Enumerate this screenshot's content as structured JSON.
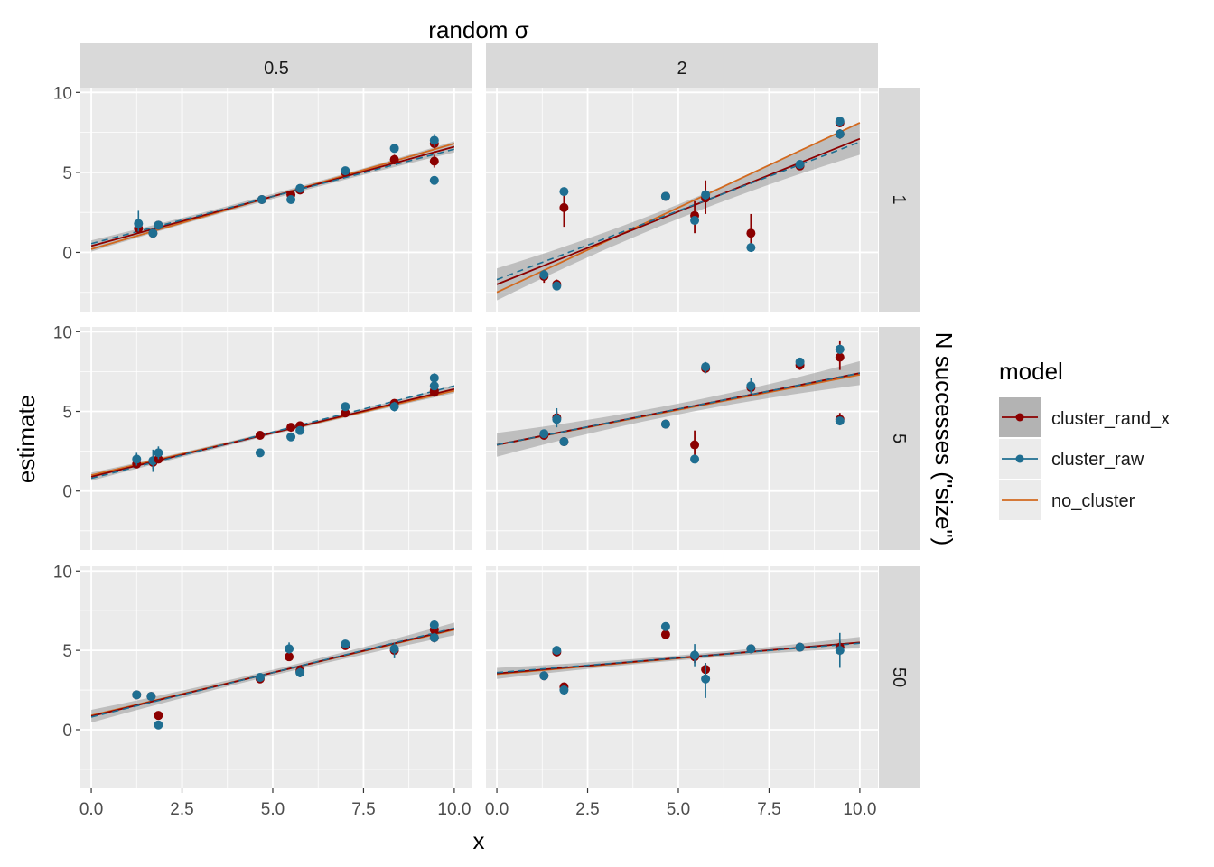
{
  "chart_data": {
    "type": "scatter",
    "title": "",
    "xlabel": "x",
    "ylabel": "estimate",
    "col_strip_title": "random σ",
    "row_strip_title": "N successes (\"size\")",
    "xlim": [
      -0.3,
      10.5
    ],
    "ylim": [
      -3.7,
      10.3
    ],
    "x_ticks": [
      0,
      2.5,
      5,
      7.5,
      10
    ],
    "x_tick_labels": [
      "0.0",
      "2.5",
      "5.0",
      "7.5",
      "10.0"
    ],
    "y_ticks": [
      0,
      5,
      10
    ],
    "y_tick_labels": [
      "0",
      "5",
      "10"
    ],
    "grid": true,
    "legend": {
      "title": "model",
      "placement": "right",
      "entries": [
        {
          "name": "cluster_rand_x",
          "color": "#8B0000",
          "kind": "point-line"
        },
        {
          "name": "cluster_raw",
          "color": "#1F6E91",
          "kind": "point-line"
        },
        {
          "name": "no_cluster",
          "color": "#D2691E",
          "kind": "line"
        }
      ]
    },
    "colors": {
      "cluster_rand_x": "#8B0000",
      "cluster_raw": "#1F6E91",
      "no_cluster": "#D2691E",
      "panel_bg": "#EBEBEB",
      "strip_bg": "#D9D9D9",
      "ribbon": "#999999"
    },
    "col_labels": [
      "0.5",
      "2"
    ],
    "row_labels": [
      "1",
      "5",
      "50"
    ],
    "panels": [
      {
        "col": 0,
        "row": 0,
        "lines": {
          "cluster_rand_x": [
            0.4,
            6.6
          ],
          "cluster_raw": [
            0.55,
            6.45
          ],
          "no_cluster": [
            0.2,
            6.8
          ]
        },
        "ribbon_halfwidth": 0.35,
        "points": [
          {
            "x": 1.3,
            "red": {
              "y": 1.5,
              "lo": 1.3,
              "hi": 1.7
            },
            "blue": {
              "y": 1.8,
              "lo": 1.3,
              "hi": 2.6
            }
          },
          {
            "x": 1.7,
            "red": {
              "y": 1.2,
              "lo": 1.1,
              "hi": 1.3
            },
            "blue": {
              "y": 1.2,
              "lo": 1.1,
              "hi": 1.3
            }
          },
          {
            "x": 1.85,
            "red": {
              "y": 1.7,
              "lo": 1.5,
              "hi": 1.9
            },
            "blue": {
              "y": 1.7,
              "lo": 1.5,
              "hi": 1.9
            }
          },
          {
            "x": 4.7,
            "red": {
              "y": 3.3,
              "lo": 3.2,
              "hi": 3.4
            },
            "blue": {
              "y": 3.3,
              "lo": 3.2,
              "hi": 3.4
            }
          },
          {
            "x": 5.5,
            "red": {
              "y": 3.6,
              "lo": 3.4,
              "hi": 3.8
            },
            "blue": {
              "y": 3.3,
              "lo": 3.1,
              "hi": 3.5
            }
          },
          {
            "x": 5.75,
            "red": {
              "y": 3.9,
              "lo": 3.7,
              "hi": 4.1
            },
            "blue": {
              "y": 4.0,
              "lo": 3.8,
              "hi": 4.2
            }
          },
          {
            "x": 7.0,
            "red": {
              "y": 5.0,
              "lo": 4.8,
              "hi": 5.2
            },
            "blue": {
              "y": 5.1,
              "lo": 4.9,
              "hi": 5.3
            }
          },
          {
            "x": 8.35,
            "red": {
              "y": 5.8,
              "lo": 5.5,
              "hi": 6.1
            },
            "blue": {
              "y": 6.5,
              "lo": 6.3,
              "hi": 6.7
            }
          },
          {
            "x": 9.45,
            "red": {
              "y": 5.7,
              "lo": 5.3,
              "hi": 6.1
            },
            "blue": {
              "y": 4.5,
              "lo": 4.3,
              "hi": 4.7
            }
          },
          {
            "x": 9.45,
            "red": {
              "y": 6.8,
              "lo": 6.5,
              "hi": 7.1
            },
            "blue": {
              "y": 7.0,
              "lo": 6.6,
              "hi": 7.4
            }
          }
        ]
      },
      {
        "col": 1,
        "row": 0,
        "lines": {
          "cluster_rand_x": [
            -2.0,
            7.1
          ],
          "cluster_raw": [
            -1.7,
            6.9
          ],
          "no_cluster": [
            -2.5,
            8.1
          ]
        },
        "ribbon_halfwidth": 1.0,
        "points": [
          {
            "x": 1.3,
            "red": {
              "y": -1.5,
              "lo": -1.9,
              "hi": -1.1
            },
            "blue": {
              "y": -1.4,
              "lo": -1.7,
              "hi": -1.1
            }
          },
          {
            "x": 1.65,
            "red": {
              "y": -2.0,
              "lo": -2.3,
              "hi": -1.7
            },
            "blue": {
              "y": -2.1,
              "lo": -2.3,
              "hi": -1.9
            }
          },
          {
            "x": 1.85,
            "red": {
              "y": 2.8,
              "lo": 1.6,
              "hi": 3.8
            },
            "blue": {
              "y": 3.8,
              "lo": 3.6,
              "hi": 4.0
            }
          },
          {
            "x": 4.65,
            "red": {
              "y": 3.5,
              "lo": 3.4,
              "hi": 3.6
            },
            "blue": {
              "y": 3.5,
              "lo": 3.4,
              "hi": 3.6
            }
          },
          {
            "x": 5.45,
            "red": {
              "y": 2.3,
              "lo": 1.2,
              "hi": 3.2
            },
            "blue": {
              "y": 2.0,
              "lo": 1.8,
              "hi": 2.2
            }
          },
          {
            "x": 5.75,
            "red": {
              "y": 3.4,
              "lo": 2.4,
              "hi": 4.5
            },
            "blue": {
              "y": 3.6,
              "lo": 3.3,
              "hi": 3.9
            }
          },
          {
            "x": 7.0,
            "red": {
              "y": 1.2,
              "lo": 0.3,
              "hi": 2.4
            },
            "blue": {
              "y": 0.3,
              "lo": 0.2,
              "hi": 0.4
            }
          },
          {
            "x": 8.35,
            "red": {
              "y": 5.4,
              "lo": 5.2,
              "hi": 5.6
            },
            "blue": {
              "y": 5.5,
              "lo": 5.3,
              "hi": 5.7
            }
          },
          {
            "x": 9.45,
            "red": {
              "y": 8.1,
              "lo": 7.9,
              "hi": 8.3
            },
            "blue": {
              "y": 8.2,
              "lo": 8.0,
              "hi": 8.4
            }
          },
          {
            "x": 9.45,
            "red": {
              "y": 7.4,
              "lo": 7.1,
              "hi": 7.7
            },
            "blue": {
              "y": 7.4,
              "lo": 7.1,
              "hi": 7.7
            }
          }
        ]
      },
      {
        "col": 0,
        "row": 1,
        "lines": {
          "cluster_rand_x": [
            0.9,
            6.4
          ],
          "cluster_raw": [
            0.8,
            6.6
          ],
          "no_cluster": [
            1.0,
            6.3
          ]
        },
        "ribbon_halfwidth": 0.25,
        "points": [
          {
            "x": 1.25,
            "red": {
              "y": 1.7,
              "lo": 1.5,
              "hi": 1.9
            },
            "blue": {
              "y": 2.0,
              "lo": 1.6,
              "hi": 2.4
            }
          },
          {
            "x": 1.7,
            "red": {
              "y": 1.8,
              "lo": 1.4,
              "hi": 2.2
            },
            "blue": {
              "y": 1.9,
              "lo": 1.2,
              "hi": 2.6
            }
          },
          {
            "x": 1.85,
            "red": {
              "y": 2.0,
              "lo": 1.8,
              "hi": 2.2
            },
            "blue": {
              "y": 2.4,
              "lo": 2.0,
              "hi": 2.8
            }
          },
          {
            "x": 4.65,
            "red": {
              "y": 3.5,
              "lo": 3.4,
              "hi": 3.6
            },
            "blue": {
              "y": 2.4,
              "lo": 2.3,
              "hi": 2.5
            }
          },
          {
            "x": 5.5,
            "red": {
              "y": 4.0,
              "lo": 3.8,
              "hi": 4.2
            },
            "blue": {
              "y": 3.4,
              "lo": 3.2,
              "hi": 3.6
            }
          },
          {
            "x": 5.75,
            "red": {
              "y": 4.1,
              "lo": 3.9,
              "hi": 4.3
            },
            "blue": {
              "y": 3.8,
              "lo": 3.6,
              "hi": 4.0
            }
          },
          {
            "x": 7.0,
            "red": {
              "y": 4.9,
              "lo": 4.7,
              "hi": 5.1
            },
            "blue": {
              "y": 5.3,
              "lo": 5.1,
              "hi": 5.5
            }
          },
          {
            "x": 8.35,
            "red": {
              "y": 5.5,
              "lo": 5.3,
              "hi": 5.7
            },
            "blue": {
              "y": 5.3,
              "lo": 5.0,
              "hi": 5.6
            }
          },
          {
            "x": 9.45,
            "red": {
              "y": 6.2,
              "lo": 6.0,
              "hi": 6.4
            },
            "blue": {
              "y": 7.1,
              "lo": 6.8,
              "hi": 7.4
            }
          },
          {
            "x": 9.45,
            "red": {
              "y": 6.3,
              "lo": 6.1,
              "hi": 6.5
            },
            "blue": {
              "y": 6.6,
              "lo": 6.4,
              "hi": 6.8
            }
          }
        ]
      },
      {
        "col": 1,
        "row": 1,
        "lines": {
          "cluster_rand_x": [
            2.9,
            7.4
          ],
          "cluster_raw": [
            2.9,
            7.4
          ],
          "no_cluster": [
            2.9,
            7.3
          ]
        },
        "ribbon_halfwidth": 0.75,
        "points": [
          {
            "x": 1.3,
            "red": {
              "y": 3.5,
              "lo": 3.3,
              "hi": 3.7
            },
            "blue": {
              "y": 3.6,
              "lo": 3.4,
              "hi": 3.8
            }
          },
          {
            "x": 1.65,
            "red": {
              "y": 4.6,
              "lo": 4.2,
              "hi": 5.0
            },
            "blue": {
              "y": 4.5,
              "lo": 4.0,
              "hi": 5.2
            }
          },
          {
            "x": 1.85,
            "red": {
              "y": 3.1,
              "lo": 2.9,
              "hi": 3.3
            },
            "blue": {
              "y": 3.1,
              "lo": 2.9,
              "hi": 3.3
            }
          },
          {
            "x": 4.65,
            "red": {
              "y": 4.2,
              "lo": 4.0,
              "hi": 4.4
            },
            "blue": {
              "y": 4.2,
              "lo": 4.0,
              "hi": 4.4
            }
          },
          {
            "x": 5.45,
            "red": {
              "y": 2.9,
              "lo": 2.0,
              "hi": 3.8
            },
            "blue": {
              "y": 2.0,
              "lo": 1.9,
              "hi": 2.1
            }
          },
          {
            "x": 5.75,
            "red": {
              "y": 7.7,
              "lo": 7.4,
              "hi": 8.0
            },
            "blue": {
              "y": 7.8,
              "lo": 7.4,
              "hi": 8.1
            }
          },
          {
            "x": 7.0,
            "red": {
              "y": 6.5,
              "lo": 6.2,
              "hi": 6.8
            },
            "blue": {
              "y": 6.6,
              "lo": 6.1,
              "hi": 7.1
            }
          },
          {
            "x": 8.35,
            "red": {
              "y": 7.9,
              "lo": 7.6,
              "hi": 8.2
            },
            "blue": {
              "y": 8.1,
              "lo": 7.9,
              "hi": 8.3
            }
          },
          {
            "x": 9.45,
            "red": {
              "y": 8.4,
              "lo": 7.6,
              "hi": 9.4
            },
            "blue": {
              "y": 8.9,
              "lo": 8.6,
              "hi": 9.2
            }
          },
          {
            "x": 9.45,
            "red": {
              "y": 4.5,
              "lo": 4.2,
              "hi": 4.9
            },
            "blue": {
              "y": 4.4,
              "lo": 4.2,
              "hi": 4.6
            }
          }
        ]
      },
      {
        "col": 0,
        "row": 2,
        "lines": {
          "cluster_rand_x": [
            0.85,
            6.35
          ],
          "cluster_raw": [
            0.8,
            6.4
          ],
          "no_cluster": [
            0.9,
            6.3
          ]
        },
        "ribbon_halfwidth": 0.4,
        "points": [
          {
            "x": 1.25,
            "red": {
              "y": 2.2,
              "lo": 2.0,
              "hi": 2.4
            },
            "blue": {
              "y": 2.2,
              "lo": 2.0,
              "hi": 2.4
            }
          },
          {
            "x": 1.65,
            "red": {
              "y": 2.1,
              "lo": 1.9,
              "hi": 2.3
            },
            "blue": {
              "y": 2.1,
              "lo": 1.9,
              "hi": 2.3
            }
          },
          {
            "x": 1.85,
            "red": {
              "y": 0.9,
              "lo": 0.7,
              "hi": 1.1
            },
            "blue": {
              "y": 0.3,
              "lo": 0.2,
              "hi": 0.4
            }
          },
          {
            "x": 4.65,
            "red": {
              "y": 3.2,
              "lo": 3.0,
              "hi": 3.4
            },
            "blue": {
              "y": 3.3,
              "lo": 3.1,
              "hi": 3.5
            }
          },
          {
            "x": 5.45,
            "red": {
              "y": 4.6,
              "lo": 4.4,
              "hi": 4.8
            },
            "blue": {
              "y": 5.1,
              "lo": 4.8,
              "hi": 5.5
            }
          },
          {
            "x": 5.75,
            "red": {
              "y": 3.7,
              "lo": 3.4,
              "hi": 4.0
            },
            "blue": {
              "y": 3.6,
              "lo": 3.3,
              "hi": 3.9
            }
          },
          {
            "x": 7.0,
            "red": {
              "y": 5.3,
              "lo": 5.1,
              "hi": 5.5
            },
            "blue": {
              "y": 5.4,
              "lo": 5.2,
              "hi": 5.6
            }
          },
          {
            "x": 8.35,
            "red": {
              "y": 5.0,
              "lo": 4.7,
              "hi": 5.3
            },
            "blue": {
              "y": 5.1,
              "lo": 4.5,
              "hi": 5.5
            }
          },
          {
            "x": 9.45,
            "red": {
              "y": 6.3,
              "lo": 6.1,
              "hi": 6.5
            },
            "blue": {
              "y": 6.6,
              "lo": 6.3,
              "hi": 6.9
            }
          },
          {
            "x": 9.45,
            "red": {
              "y": 5.8,
              "lo": 5.5,
              "hi": 6.1
            },
            "blue": {
              "y": 5.8,
              "lo": 5.5,
              "hi": 6.1
            }
          }
        ]
      },
      {
        "col": 1,
        "row": 2,
        "lines": {
          "cluster_rand_x": [
            3.55,
            5.5
          ],
          "cluster_raw": [
            3.6,
            5.45
          ],
          "no_cluster": [
            3.5,
            5.5
          ]
        },
        "ribbon_halfwidth": 0.35,
        "points": [
          {
            "x": 1.3,
            "red": {
              "y": 3.4,
              "lo": 3.2,
              "hi": 3.6
            },
            "blue": {
              "y": 3.4,
              "lo": 3.2,
              "hi": 3.6
            }
          },
          {
            "x": 1.65,
            "red": {
              "y": 4.9,
              "lo": 4.7,
              "hi": 5.1
            },
            "blue": {
              "y": 5.0,
              "lo": 4.8,
              "hi": 5.2
            }
          },
          {
            "x": 1.85,
            "red": {
              "y": 2.7,
              "lo": 2.5,
              "hi": 2.9
            },
            "blue": {
              "y": 2.5,
              "lo": 2.2,
              "hi": 2.8
            }
          },
          {
            "x": 4.65,
            "red": {
              "y": 6.0,
              "lo": 5.8,
              "hi": 6.2
            },
            "blue": {
              "y": 6.5,
              "lo": 6.3,
              "hi": 6.7
            }
          },
          {
            "x": 5.45,
            "red": {
              "y": 4.6,
              "lo": 4.2,
              "hi": 5.0
            },
            "blue": {
              "y": 4.7,
              "lo": 4.0,
              "hi": 5.4
            }
          },
          {
            "x": 5.75,
            "red": {
              "y": 3.8,
              "lo": 3.4,
              "hi": 4.2
            },
            "blue": {
              "y": 3.2,
              "lo": 2.0,
              "hi": 4.2
            }
          },
          {
            "x": 7.0,
            "red": {
              "y": 5.1,
              "lo": 4.9,
              "hi": 5.3
            },
            "blue": {
              "y": 5.1,
              "lo": 4.9,
              "hi": 5.3
            }
          },
          {
            "x": 8.35,
            "red": {
              "y": 5.2,
              "lo": 5.0,
              "hi": 5.4
            },
            "blue": {
              "y": 5.2,
              "lo": 5.0,
              "hi": 5.4
            }
          },
          {
            "x": 9.45,
            "red": {
              "y": 5.2,
              "lo": 4.7,
              "hi": 5.6
            },
            "blue": {
              "y": 5.0,
              "lo": 3.9,
              "hi": 6.1
            }
          }
        ]
      }
    ]
  }
}
